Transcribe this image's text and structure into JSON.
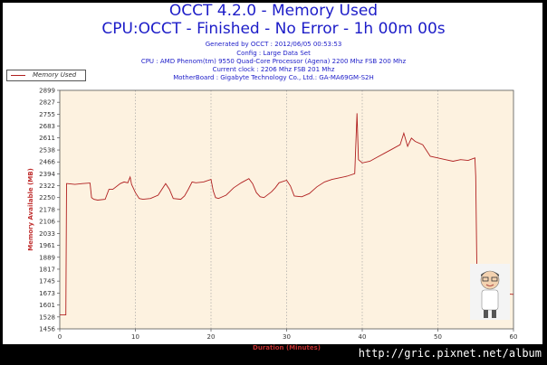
{
  "title": "OCCT 4.2.0 - Memory Used",
  "subtitle": "CPU:OCCT - Finished - No Error - 1h 00m 00s",
  "info_lines": [
    "Generated by OCCT : 2012/06/05 00:53:53",
    "Config : Large Data Set",
    "CPU : AMD Phenom(tm) 9550 Quad-Core Processor (Agena) 2200 Mhz FSB 200 Mhz",
    "Current clock : 2206 Mhz FSB 201 Mhz",
    "MotherBoard : Gigabyte Technology Co., Ltd.: GA-MA69GM-S2H"
  ],
  "watermark": "http://gric.pixnet.net/album",
  "colors": {
    "line": "#b02020",
    "plot_bg": "#fdf2e0",
    "title": "#1c1cc8",
    "axis_label": "#c03030"
  },
  "chart_data": {
    "type": "line",
    "xlabel": "Duration (Minutes)",
    "ylabel": "Memory Available (MB)",
    "xlim": [
      0,
      60
    ],
    "ylim": [
      1456,
      2899
    ],
    "xticks": [
      0,
      10,
      20,
      30,
      40,
      50,
      60
    ],
    "yticks": [
      1456,
      1528,
      1601,
      1673,
      1745,
      1817,
      1889,
      1961,
      2033,
      2106,
      2178,
      2250,
      2322,
      2394,
      2466,
      2538,
      2611,
      2683,
      2755,
      2827,
      2899
    ],
    "grid": "dashed vertical",
    "legend": "top-left",
    "series": [
      {
        "name": "Memory Used",
        "x": [
          0,
          0.8,
          0.9,
          1.0,
          2,
          3,
          4,
          4.2,
          4.5,
          5,
          6,
          6.5,
          7,
          8,
          8.5,
          9,
          9.3,
          9.5,
          10,
          10.5,
          11,
          12,
          13,
          14,
          14.5,
          15,
          16,
          16.5,
          17,
          17.5,
          18,
          19,
          20,
          20.3,
          20.6,
          21,
          22,
          23,
          24,
          25,
          25.5,
          26,
          26.5,
          27,
          28,
          28.5,
          29,
          30,
          30.5,
          31,
          32,
          33,
          34,
          35,
          36,
          37,
          38,
          39,
          39.3,
          39.5,
          40,
          41,
          42,
          43,
          44,
          45,
          45.5,
          46,
          46.5,
          47,
          48,
          49,
          50,
          51,
          52,
          53,
          54,
          54.9,
          55,
          55.2,
          56,
          57,
          58,
          60
        ],
        "y": [
          1540,
          1540,
          2335,
          2335,
          2330,
          2335,
          2338,
          2250,
          2240,
          2235,
          2240,
          2300,
          2300,
          2335,
          2345,
          2340,
          2375,
          2330,
          2280,
          2245,
          2240,
          2245,
          2265,
          2335,
          2300,
          2245,
          2240,
          2260,
          2300,
          2345,
          2340,
          2345,
          2360,
          2290,
          2250,
          2245,
          2265,
          2310,
          2340,
          2365,
          2335,
          2280,
          2255,
          2250,
          2285,
          2310,
          2340,
          2355,
          2320,
          2260,
          2255,
          2275,
          2315,
          2345,
          2360,
          2370,
          2380,
          2395,
          2760,
          2480,
          2460,
          2470,
          2495,
          2520,
          2545,
          2570,
          2640,
          2560,
          2610,
          2590,
          2570,
          2500,
          2490,
          2480,
          2470,
          2480,
          2475,
          2490,
          2380,
          1670,
          1675,
          1673,
          1670,
          1665
        ]
      }
    ]
  }
}
